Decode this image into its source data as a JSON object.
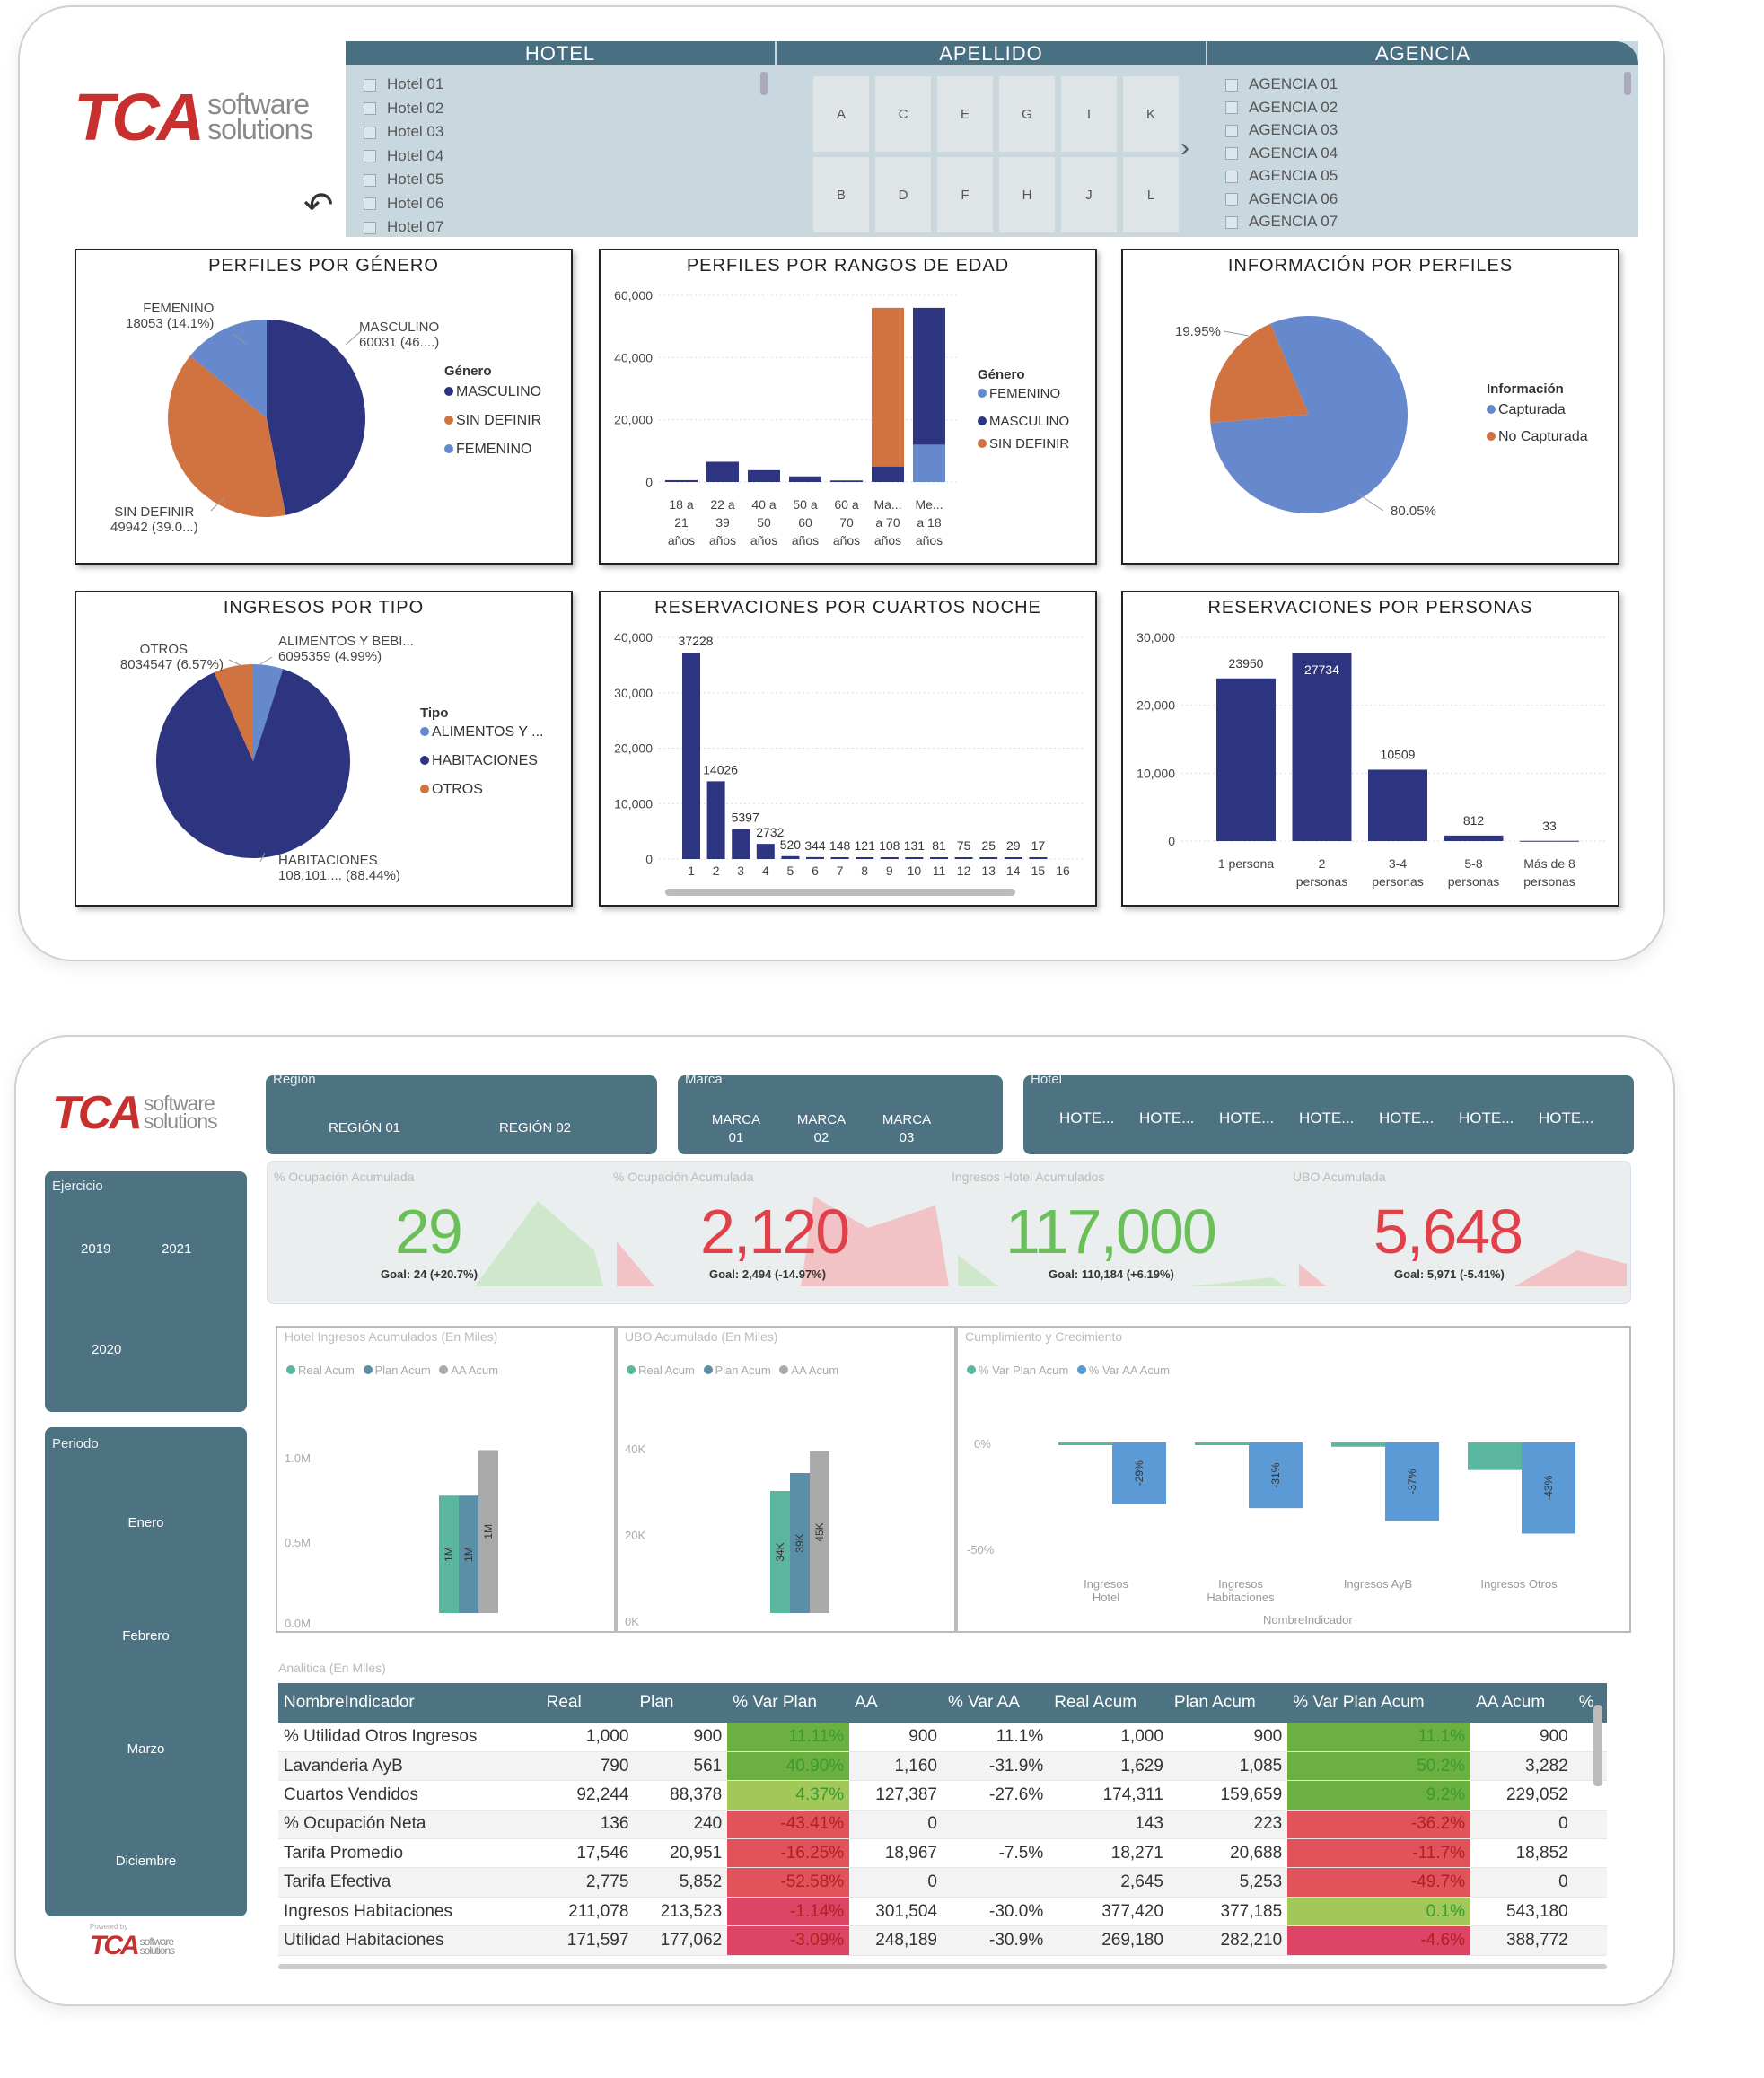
{
  "dash1": {
    "logo": {
      "tca": "TCA",
      "software": "software",
      "solutions": "solutions"
    },
    "slicers": {
      "hotel": {
        "header": "HOTEL",
        "items": [
          "Hotel 01",
          "Hotel 02",
          "Hotel 03",
          "Hotel 04",
          "Hotel 05",
          "Hotel 06",
          "Hotel 07"
        ]
      },
      "apellido": {
        "header": "APELLIDO",
        "letters_row1": [
          "A",
          "C",
          "E",
          "G",
          "I",
          "K"
        ],
        "letters_row2": [
          "B",
          "D",
          "F",
          "H",
          "J",
          "L"
        ]
      },
      "agencia": {
        "header": "AGENCIA",
        "items": [
          "AGENCIA 01",
          "AGENCIA 02",
          "AGENCIA 03",
          "AGENCIA 04",
          "AGENCIA 05",
          "AGENCIA 06",
          "AGENCIA 07"
        ]
      }
    },
    "cards": {
      "genero": {
        "title": "PERFILES POR GÉNERO",
        "legend_title": "Género",
        "legend": [
          "MASCULINO",
          "SIN DEFINIR",
          "FEMENINO"
        ],
        "labels": {
          "fem": "FEMENINO",
          "fem_v": "18053 (14.1%)",
          "masc": "MASCULINO",
          "masc_v": "60031 (46....)",
          "sin": "SIN DEFINIR",
          "sin_v": "49942 (39.0...)"
        }
      },
      "edad": {
        "title": "PERFILES POR RANGOS DE EDAD",
        "legend_title": "Género",
        "legend": [
          "FEMENINO",
          "MASCULINO",
          "SIN DEFINIR"
        ],
        "y_ticks": [
          "60,000",
          "40,000",
          "20,000",
          "0"
        ],
        "cats": [
          [
            "18 a",
            "21",
            "años"
          ],
          [
            "22 a",
            "39",
            "años"
          ],
          [
            "40 a",
            "50",
            "años"
          ],
          [
            "50 a",
            "60",
            "años"
          ],
          [
            "60 a",
            "70",
            "años"
          ],
          [
            "Ma...",
            "a 70",
            "años"
          ],
          [
            "Me...",
            "a 18",
            "años"
          ]
        ]
      },
      "info": {
        "title": "INFORMACIÓN POR PERFILES",
        "legend_title": "Información",
        "legend": [
          "Capturada",
          "No Capturada"
        ],
        "l1": "19.95%",
        "l2": "80.05%"
      },
      "ingresos": {
        "title": "INGRESOS POR TIPO",
        "legend_title": "Tipo",
        "legend": [
          "ALIMENTOS Y ...",
          "HABITACIONES",
          "OTROS"
        ],
        "labels": {
          "otros": "OTROS",
          "otros_v": "8034547 (6.57%)",
          "alim": "ALIMENTOS Y BEBI...",
          "alim_v": "6095359 (4.99%)",
          "hab": "HABITACIONES",
          "hab_v": "108,101,... (88.44%)"
        }
      },
      "cuartos": {
        "title": "RESERVACIONES POR CUARTOS NOCHE",
        "y_ticks": [
          "40,000",
          "30,000",
          "20,000",
          "10,000",
          "0"
        ]
      },
      "personas": {
        "title": "RESERVACIONES POR PERSONAS",
        "y_ticks": [
          "30,000",
          "20,000",
          "10,000",
          "0"
        ]
      }
    }
  },
  "dash2": {
    "logo": {
      "tca": "TCA",
      "software": "software",
      "solutions": "solutions",
      "powered": "Powered by"
    },
    "region": {
      "label": "Región",
      "options": [
        "REGIÓN 01",
        "REGIÓN 02"
      ]
    },
    "marca": {
      "label": "Marca",
      "options": [
        "MARCA 01",
        "MARCA 02",
        "MARCA 03"
      ]
    },
    "hotel": {
      "label": "Hotel",
      "options": [
        "HOTE...",
        "HOTE...",
        "HOTE...",
        "HOTE...",
        "HOTE...",
        "HOTE...",
        "HOTE..."
      ]
    },
    "ejercicio": {
      "label": "Ejercicio",
      "options": [
        "2019",
        "2021",
        "2020"
      ]
    },
    "periodo": {
      "label": "Periodo",
      "options": [
        "Enero",
        "Febrero",
        "Marzo",
        "Diciembre"
      ]
    },
    "kpis": [
      {
        "label": "% Ocupación Acumulada",
        "value": "29",
        "goal": "Goal: 24 (+20.7%)",
        "color": "#6bbf59"
      },
      {
        "label": "% Ocupación Acumulada",
        "value": "2,120",
        "goal": "Goal: 2,494 (-14.97%)",
        "color": "#e0404a"
      },
      {
        "label": "Ingresos Hotel Acumulados",
        "value": "117,000",
        "goal": "Goal: 110,184 (+6.19%)",
        "color": "#6bbf59"
      },
      {
        "label": "UBO Acumulada",
        "value": "5,648",
        "goal": "Goal: 5,971 (-5.41%)",
        "color": "#e0404a"
      }
    ],
    "pane1": {
      "title": "Hotel Ingresos Acumulados (En Miles)",
      "legend": [
        "Real Acum",
        "Plan Acum",
        "AA Acum"
      ],
      "y_ticks": [
        "1.0M",
        "0.5M",
        "0.0M"
      ],
      "bar_labels": [
        "1M",
        "1M",
        "1M"
      ]
    },
    "pane2": {
      "title": "UBO Acumulado (En Miles)",
      "legend": [
        "Real Acum",
        "Plan Acum",
        "AA Acum"
      ],
      "y_ticks": [
        "40K",
        "20K",
        "0K"
      ],
      "bar_labels": [
        "34K",
        "39K",
        "45K"
      ]
    },
    "pane3": {
      "title": "Cumplimiento y Crecimiento",
      "legend": [
        "% Var Plan Acum",
        "% Var AA Acum"
      ],
      "y_ticks": [
        "0%",
        "-50%"
      ],
      "cats": [
        "Ingresos Hotel",
        "Ingresos Habitaciones",
        "Ingresos AyB",
        "Ingresos Otros"
      ],
      "xlabel": "NombreIndicador",
      "bar_labels": [
        "-29%",
        "-31%",
        "-37%",
        "-43%"
      ]
    },
    "table": {
      "title": "Analitica (En Miles)",
      "headers": [
        "NombreIndicador",
        "Real",
        "Plan",
        "% Var Plan",
        "AA",
        "% Var AA",
        "Real Acum",
        "Plan Acum",
        "% Var Plan Acum",
        "AA Acum",
        "%"
      ],
      "rows": [
        [
          "% Utilidad Otros Ingresos",
          "1,000",
          "900",
          "11.11%",
          "900",
          "11.1%",
          "1,000",
          "900",
          "11.1%",
          "900"
        ],
        [
          "Lavanderia AyB",
          "790",
          "561",
          "40.90%",
          "1,160",
          "-31.9%",
          "1,629",
          "1,085",
          "50.2%",
          "3,282"
        ],
        [
          "Cuartos Vendidos",
          "92,244",
          "88,378",
          "4.37%",
          "127,387",
          "-27.6%",
          "174,311",
          "159,659",
          "9.2%",
          "229,052"
        ],
        [
          "% Ocupación Neta",
          "136",
          "240",
          "-43.41%",
          "0",
          "",
          "143",
          "223",
          "-36.2%",
          "0"
        ],
        [
          "Tarifa Promedio",
          "17,546",
          "20,951",
          "-16.25%",
          "18,967",
          "-7.5%",
          "18,271",
          "20,688",
          "-11.7%",
          "18,852"
        ],
        [
          "Tarifa Efectiva",
          "2,775",
          "5,852",
          "-52.58%",
          "0",
          "",
          "2,645",
          "5,253",
          "-49.7%",
          "0"
        ],
        [
          "Ingresos Habitaciones",
          "211,078",
          "213,523",
          "-1.14%",
          "301,504",
          "-30.0%",
          "377,420",
          "377,185",
          "0.1%",
          "543,180"
        ],
        [
          "Utilidad Habitaciones",
          "171,597",
          "177,062",
          "-3.09%",
          "248,189",
          "-30.9%",
          "269,180",
          "282,210",
          "-4.6%",
          "388,772"
        ]
      ]
    }
  },
  "chart_data": [
    {
      "type": "pie",
      "title": "PERFILES POR GÉNERO",
      "categories": [
        "MASCULINO",
        "SIN DEFINIR",
        "FEMENINO"
      ],
      "values": [
        60031,
        49942,
        18053
      ]
    },
    {
      "type": "bar",
      "title": "PERFILES POR RANGOS DE EDAD",
      "categories": [
        "18 a 21 años",
        "22 a 39 años",
        "40 a 50 años",
        "50 a 60 años",
        "60 a 70 años",
        "Ma... a 70 años",
        "Me... a 18 años"
      ],
      "series": [
        {
          "name": "FEMENINO",
          "values": [
            0,
            0,
            0,
            0,
            0,
            0,
            12000
          ]
        },
        {
          "name": "MASCULINO",
          "values": [
            600,
            6500,
            3800,
            1800,
            500,
            5000,
            44000
          ]
        },
        {
          "name": "SIN DEFINIR",
          "values": [
            0,
            0,
            0,
            0,
            0,
            51000,
            0
          ]
        }
      ],
      "ylim": [
        0,
        60000
      ]
    },
    {
      "type": "pie",
      "title": "INFORMACIÓN POR PERFILES",
      "categories": [
        "Capturada",
        "No Capturada"
      ],
      "values": [
        80.05,
        19.95
      ]
    },
    {
      "type": "pie",
      "title": "INGRESOS POR TIPO",
      "categories": [
        "ALIMENTOS Y ...",
        "HABITACIONES",
        "OTROS"
      ],
      "values": [
        6095359,
        108101000,
        8034547
      ]
    },
    {
      "type": "bar",
      "title": "RESERVACIONES POR CUARTOS NOCHE",
      "categories": [
        "1",
        "2",
        "3",
        "4",
        "5",
        "6",
        "7",
        "8",
        "9",
        "10",
        "11",
        "12",
        "13",
        "14",
        "15",
        "16"
      ],
      "values": [
        37228,
        14026,
        5397,
        2732,
        520,
        344,
        148,
        121,
        108,
        131,
        81,
        75,
        25,
        29,
        17,
        0
      ],
      "ylim": [
        0,
        40000
      ]
    },
    {
      "type": "bar",
      "title": "RESERVACIONES POR PERSONAS",
      "categories": [
        "1 persona",
        "2 personas",
        "3-4 personas",
        "5-8 personas",
        "Más de 8 personas"
      ],
      "values": [
        23950,
        27734,
        10509,
        812,
        33
      ],
      "ylim": [
        0,
        30000
      ]
    }
  ]
}
